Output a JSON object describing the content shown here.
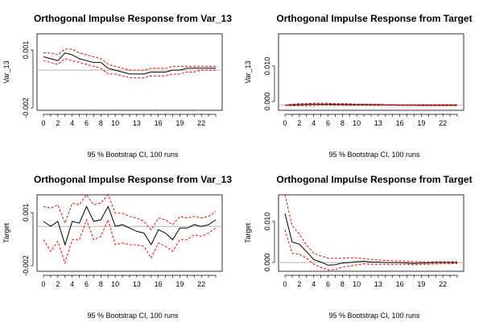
{
  "chart_data": [
    {
      "type": "line",
      "title": "Orthogonal Impulse Response from Var_13",
      "ylabel": "Var_13",
      "xlabel": "95 % Bootstrap CI,  100 runs",
      "xticks": [
        "0",
        "2",
        "4",
        "6",
        "8",
        "10",
        "13",
        "16",
        "19",
        "22"
      ],
      "yticks": [
        "-0.002",
        "0.001"
      ],
      "ylim": [
        -0.0021,
        0.0019
      ],
      "x": [
        0,
        1,
        2,
        3,
        4,
        5,
        6,
        7,
        8,
        9,
        10,
        11,
        12,
        13,
        14,
        15,
        16,
        17,
        18,
        19,
        20,
        21,
        22,
        23,
        24
      ],
      "series": [
        {
          "role": "estimate",
          "color": "#000000",
          "style": "solid",
          "values": [
            0.0007,
            0.0006,
            0.0005,
            0.0009,
            0.0008,
            0.0006,
            0.0005,
            0.0004,
            0.0004,
            0.0001,
            0.0,
            -0.0001,
            -0.0002,
            -0.0002,
            -0.0002,
            -0.0001,
            -0.0001,
            -0.0001,
            0.0,
            0.0,
            0.0001,
            0.0001,
            0.0001,
            0.0001,
            0.0001
          ]
        },
        {
          "role": "upper",
          "color": "#ff0000",
          "style": "dashed",
          "values": [
            0.0009,
            0.0009,
            0.0008,
            0.0011,
            0.0011,
            0.0009,
            0.0008,
            0.0007,
            0.0006,
            0.0003,
            0.0002,
            0.0001,
            0.0,
            0.0,
            0.0,
            0.0001,
            0.0001,
            0.0001,
            0.0002,
            0.0002,
            0.0002,
            0.0002,
            0.0002,
            0.0002,
            0.0002
          ]
        },
        {
          "role": "lower",
          "color": "#ff0000",
          "style": "dashed",
          "values": [
            0.0005,
            0.0004,
            0.0003,
            0.0006,
            0.0005,
            0.0004,
            0.0003,
            0.0002,
            0.0001,
            -0.0002,
            -0.0002,
            -0.0003,
            -0.0004,
            -0.0004,
            -0.0004,
            -0.0003,
            -0.0003,
            -0.0003,
            -0.0002,
            -0.0002,
            -0.0001,
            -0.0001,
            0.0,
            0.0,
            0.0
          ]
        }
      ]
    },
    {
      "type": "line",
      "title": "Orthogonal Impulse Response from Target",
      "ylabel": "Var_13",
      "xlabel": "95 % Bootstrap CI,  100 runs",
      "xticks": [
        "0",
        "2",
        "4",
        "6",
        "8",
        "10",
        "13",
        "16",
        "19",
        "22"
      ],
      "yticks": [
        "0.000",
        "0.010"
      ],
      "ylim": [
        -0.001,
        0.014
      ],
      "x": [
        0,
        1,
        2,
        3,
        4,
        5,
        6,
        7,
        8,
        9,
        10,
        11,
        12,
        13,
        14,
        15,
        16,
        17,
        18,
        19,
        20,
        21,
        22,
        23,
        24
      ],
      "series": [
        {
          "role": "estimate",
          "color": "#000000",
          "style": "solid",
          "values": [
            0.0,
            5e-05,
            0.0001,
            0.00015,
            0.0002,
            0.0002,
            0.0002,
            0.00015,
            0.00015,
            0.0001,
            0.0001,
            0.0001,
            5e-05,
            5e-05,
            5e-05,
            5e-05,
            0.0,
            0.0,
            0.0,
            0.0,
            0.0,
            0.0,
            0.0,
            0.0,
            0.0
          ]
        },
        {
          "role": "upper",
          "color": "#ff0000",
          "style": "dashed",
          "values": [
            0.0,
            0.0002,
            0.0003,
            0.0003,
            0.0004,
            0.0004,
            0.0004,
            0.0003,
            0.0003,
            0.0003,
            0.0002,
            0.0002,
            0.0002,
            0.0002,
            0.0001,
            0.0001,
            0.0001,
            0.0001,
            0.0001,
            0.0001,
            0.0001,
            0.0001,
            0.0001,
            0.0001,
            0.0001
          ]
        },
        {
          "role": "lower",
          "color": "#ff0000",
          "style": "dashed",
          "values": [
            0.0,
            -0.0001,
            -0.0001,
            -0.0001,
            -0.0001,
            0.0,
            0.0,
            0.0,
            0.0,
            0.0,
            0.0,
            0.0,
            0.0,
            0.0,
            0.0,
            0.0,
            0.0,
            0.0,
            0.0,
            -0.0001,
            -0.0001,
            -0.0001,
            -0.0001,
            -0.0001,
            -0.0001
          ]
        }
      ]
    },
    {
      "type": "line",
      "title": "Orthogonal Impulse Response from Var_13",
      "ylabel": "Target",
      "xlabel": "95 % Bootstrap CI,  100 runs",
      "xticks": [
        "0",
        "2",
        "4",
        "6",
        "8",
        "10",
        "13",
        "16",
        "19",
        "22"
      ],
      "yticks": [
        "-0.002",
        "0.001"
      ],
      "ylim": [
        -0.0027,
        0.0019
      ],
      "x": [
        0,
        1,
        2,
        3,
        4,
        5,
        6,
        7,
        8,
        9,
        10,
        11,
        12,
        13,
        14,
        15,
        16,
        17,
        18,
        19,
        20,
        21,
        22,
        23,
        24
      ],
      "series": [
        {
          "role": "estimate",
          "color": "#000000",
          "style": "solid",
          "values": [
            0.0003,
            0.0,
            0.0003,
            -0.0011,
            0.0003,
            0.0002,
            0.0012,
            0.0003,
            0.0004,
            0.0012,
            0.0,
            0.0001,
            -0.0001,
            -0.0003,
            -0.0004,
            -0.0011,
            -0.0002,
            -0.0004,
            -0.0008,
            -0.0001,
            -0.0001,
            0.0001,
            0.0,
            0.0001,
            0.0004
          ]
        },
        {
          "role": "upper",
          "color": "#ff0000",
          "style": "dashed",
          "values": [
            0.0012,
            0.0011,
            0.0013,
            0.0002,
            0.0014,
            0.0013,
            0.0019,
            0.0013,
            0.0014,
            0.0019,
            0.0008,
            0.0008,
            0.0006,
            0.0005,
            0.0003,
            -0.0002,
            0.0005,
            0.0004,
            0.0001,
            0.0006,
            0.0005,
            0.0006,
            0.0005,
            0.0006,
            0.0009
          ]
        },
        {
          "role": "lower",
          "color": "#ff0000",
          "style": "dashed",
          "values": [
            -0.0008,
            -0.0015,
            -0.0009,
            -0.0022,
            -0.0008,
            -0.0008,
            0.0004,
            -0.0008,
            -0.0006,
            0.0004,
            -0.0011,
            -0.001,
            -0.0011,
            -0.0011,
            -0.0012,
            -0.0019,
            -0.001,
            -0.0012,
            -0.0015,
            -0.0008,
            -0.0008,
            -0.0005,
            -0.0006,
            -0.0004,
            -0.0001
          ]
        }
      ]
    },
    {
      "type": "line",
      "title": "Orthogonal Impulse Response from Target",
      "ylabel": "Target",
      "xlabel": "95 % Bootstrap CI,  100 runs",
      "xticks": [
        "0",
        "2",
        "4",
        "6",
        "8",
        "10",
        "13",
        "16",
        "19",
        "22"
      ],
      "yticks": [
        "0.000",
        "0.010"
      ],
      "ylim": [
        -0.002,
        0.0155
      ],
      "x": [
        0,
        1,
        2,
        3,
        4,
        5,
        6,
        7,
        8,
        9,
        10,
        11,
        12,
        13,
        14,
        15,
        16,
        17,
        18,
        19,
        20,
        21,
        22,
        23,
        24
      ],
      "series": [
        {
          "role": "estimate",
          "color": "#000000",
          "style": "solid",
          "values": [
            0.0112,
            0.0047,
            0.0042,
            0.0025,
            0.0007,
            0.0001,
            -0.0006,
            -0.0005,
            -0.0001,
            0.0,
            0.0002,
            0.0003,
            0.0001,
            0.0001,
            0.0,
            0.0,
            0.0,
            -0.0001,
            -0.0002,
            -0.0001,
            -0.0001,
            0.0,
            0.0,
            0.0,
            0.0
          ]
        },
        {
          "role": "upper",
          "color": "#ff0000",
          "style": "dashed",
          "values": [
            0.0155,
            0.0085,
            0.0065,
            0.004,
            0.0021,
            0.0015,
            0.001,
            0.001,
            0.001,
            0.0011,
            0.0011,
            0.0009,
            0.0007,
            0.0006,
            0.0005,
            0.0004,
            0.0004,
            0.0003,
            0.0002,
            0.0002,
            0.0002,
            0.0002,
            0.0002,
            0.0002,
            0.0002
          ]
        },
        {
          "role": "lower",
          "color": "#ff0000",
          "style": "dashed",
          "values": [
            0.0075,
            0.0021,
            0.0019,
            0.001,
            -0.0004,
            -0.0011,
            -0.0017,
            -0.0016,
            -0.001,
            -0.0008,
            -0.0005,
            -0.0003,
            -0.0004,
            -0.0004,
            -0.0004,
            -0.0004,
            -0.0004,
            -0.0004,
            -0.0005,
            -0.0004,
            -0.0004,
            -0.0003,
            -0.0003,
            -0.0003,
            -0.0002
          ]
        }
      ]
    }
  ]
}
